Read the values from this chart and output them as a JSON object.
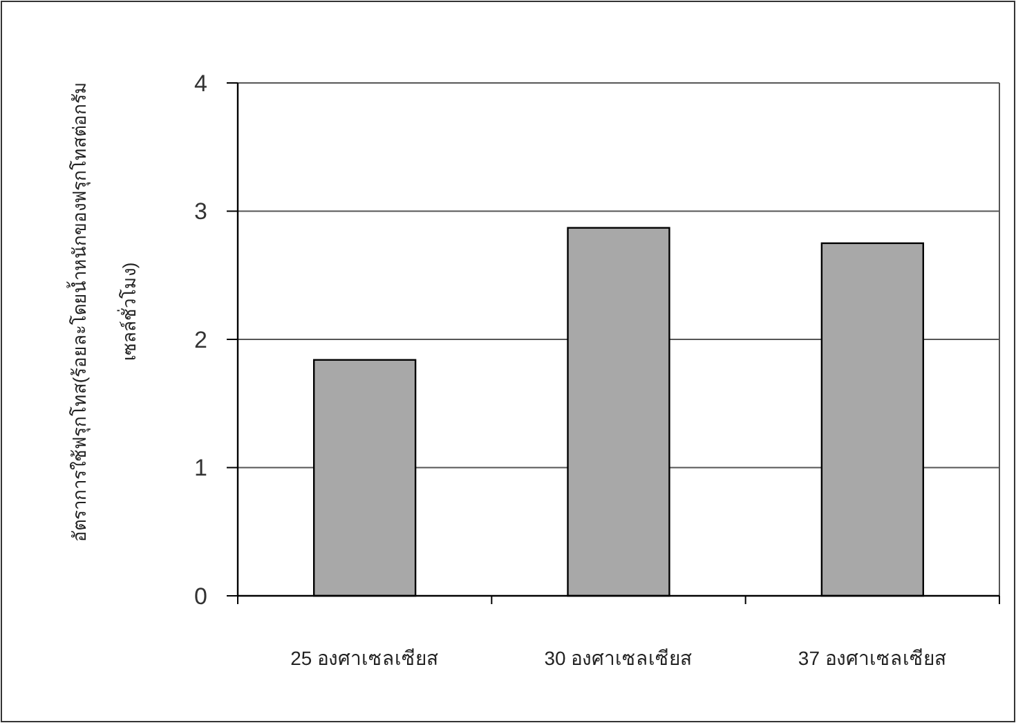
{
  "chart_data": {
    "type": "bar",
    "ylabel": "อัตราการใช้ฟรุกโทส(ร้อยละโดยน้ำหนักของฟรุกโทสต่อกรัม\nเซลล์ชั่วโมง)",
    "categories": [
      "25 องศาเซลเซียส",
      "30 องศาเซลเซียส",
      "37 องศาเซลเซียส"
    ],
    "values": [
      1.84,
      2.87,
      2.75
    ],
    "color": "#a8a8a8",
    "ylim": [
      0,
      4
    ],
    "yticks": [
      0,
      1,
      2,
      3,
      4
    ],
    "grid": "y"
  }
}
